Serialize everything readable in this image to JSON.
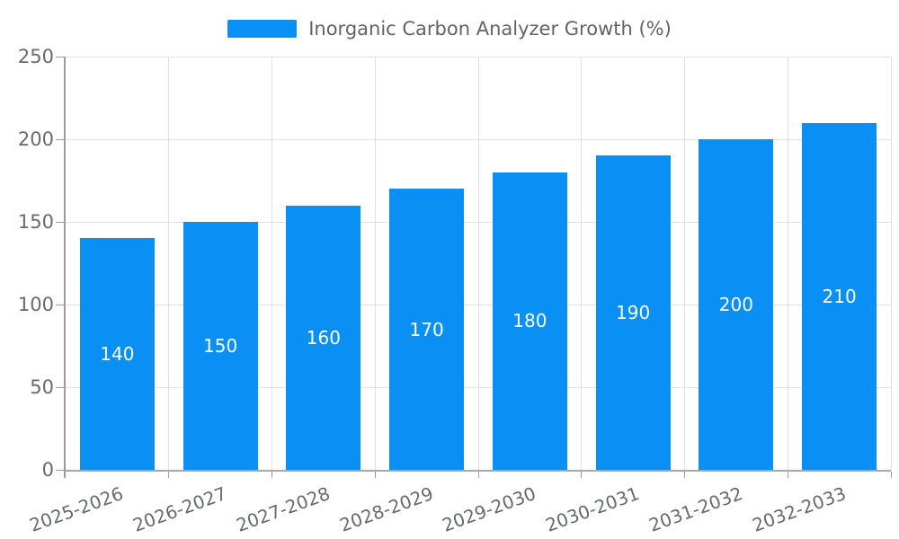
{
  "legend": {
    "label": "Inorganic Carbon Analyzer Growth (%)"
  },
  "chart_data": {
    "type": "bar",
    "title": "Inorganic Carbon Analyzer Growth (%)",
    "categories": [
      "2025-2026",
      "2026-2027",
      "2027-2028",
      "2028-2029",
      "2029-2030",
      "2030-2031",
      "2031-2032",
      "2032-2033"
    ],
    "values": [
      140,
      150,
      160,
      170,
      180,
      190,
      200,
      210
    ],
    "xlabel": "",
    "ylabel": "",
    "ylim": [
      0,
      250
    ],
    "yticks": [
      0,
      50,
      100,
      150,
      200,
      250
    ],
    "grid": true,
    "legend_position": "top-center",
    "x_label_rotation_deg": -20,
    "value_label_position": "inside-center",
    "colors": {
      "bar": "#0a90f5",
      "value_label": "#ffffff",
      "axis_line": "#9c9c9c",
      "gridline": "#e0e0e0",
      "tick_label": "#666b70",
      "legend_text": "#5f646a",
      "background": "#ffffff"
    }
  }
}
